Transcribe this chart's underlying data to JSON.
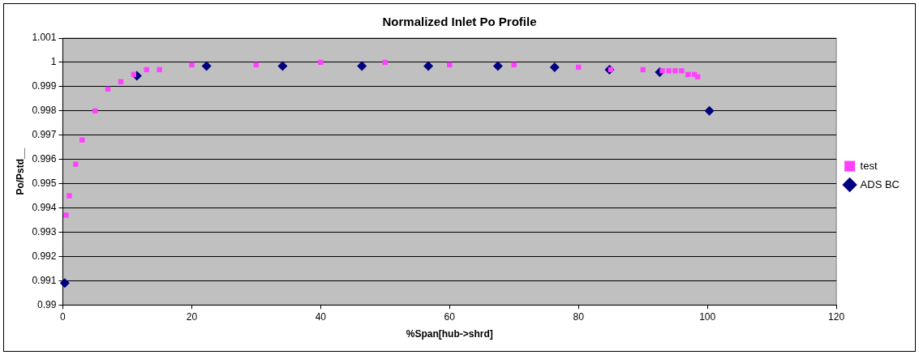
{
  "chart_data": {
    "type": "scatter",
    "title": "Normalized Inlet Po Profile",
    "xlabel": "%Span[hub->shrd]",
    "ylabel": "Po/Pstd__",
    "xlim": [
      0,
      120
    ],
    "xticks": [
      0,
      20,
      40,
      60,
      80,
      100,
      120
    ],
    "ylim": [
      0.99,
      1.001
    ],
    "yticks": [
      0.99,
      0.991,
      0.992,
      0.993,
      0.994,
      0.995,
      0.996,
      0.997,
      0.998,
      0.999,
      1,
      1.001
    ],
    "grid": "y",
    "legend": "right",
    "series": [
      {
        "name": "ADS BC",
        "color": "#000080",
        "marker": "diamond",
        "x": [
          0.3,
          11.5,
          22.3,
          34.1,
          46.4,
          56.7,
          67.5,
          76.3,
          84.8,
          92.6,
          100.3
        ],
        "values": [
          0.9909,
          0.99945,
          0.99985,
          0.99985,
          0.99985,
          0.99985,
          0.99985,
          0.9998,
          0.9997,
          0.9996,
          0.998
        ]
      },
      {
        "name": "test",
        "color": "#ff40ff",
        "marker": "square",
        "x": [
          0.5,
          1,
          2,
          3,
          5,
          7,
          9,
          11,
          13,
          15,
          20,
          30,
          40,
          50,
          60,
          70,
          80,
          85,
          90,
          93,
          94,
          95,
          96,
          97,
          98,
          98.5
        ],
        "values": [
          0.9937,
          0.9945,
          0.9958,
          0.9968,
          0.998,
          0.9989,
          0.9992,
          0.9995,
          0.9997,
          0.9997,
          0.9999,
          0.9999,
          1,
          1,
          0.9999,
          0.9999,
          0.9998,
          0.9997,
          0.9997,
          0.99965,
          0.99965,
          0.99965,
          0.99965,
          0.9995,
          0.9995,
          0.9994
        ]
      }
    ]
  }
}
